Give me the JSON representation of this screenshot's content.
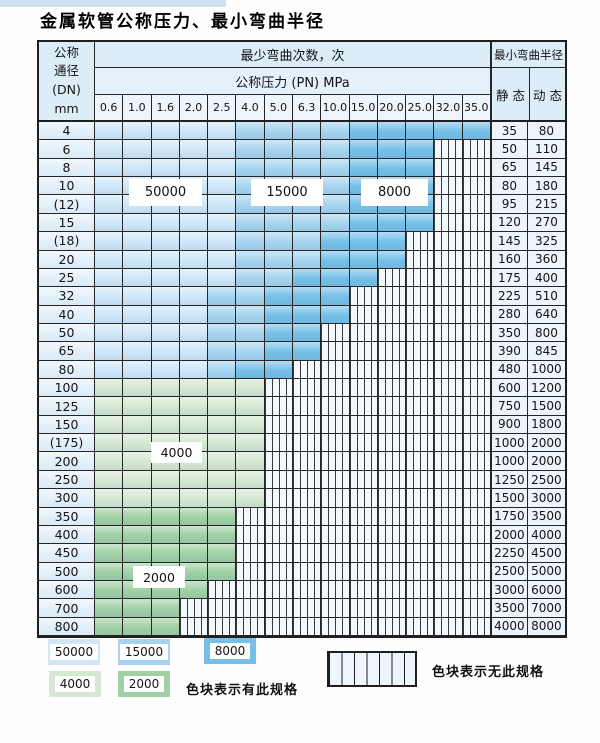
{
  "title": "金属软管公称压力、最小弯曲半径",
  "colors": {
    "b50": "#cfe7f8",
    "b15": "#a6d4ef",
    "b80": "#76c0e8",
    "g40": "#d4e8d2",
    "g20": "#a0d0a4",
    "border": "#262626",
    "header_bg": "#dcedf8"
  },
  "table": {
    "header": {
      "dn_lines": [
        "公称",
        "通径",
        "(DN)",
        "mm"
      ],
      "bend_times": "最少弯曲次数，次",
      "pressure": "公称压力 (PN) MPa",
      "radius": "最小弯曲半径",
      "static": "静 态",
      "dynamic": "动 态",
      "pressure_cols": [
        "0.6",
        "1.0",
        "1.6",
        "2.0",
        "2.5",
        "4.0",
        "5.0",
        "6.3",
        "10.0",
        "15.0",
        "20.0",
        "25.0",
        "32.0",
        "35.0"
      ]
    },
    "cycle_zone_meaning": {
      "b50": "50000",
      "b15": "15000",
      "b80": "8000",
      "g40": "4000",
      "g20": "2000",
      "no": "无此规格"
    },
    "rows": [
      {
        "dn": "4",
        "static": "35",
        "dynamic": "80",
        "bands": [
          [
            "b50",
            5
          ],
          [
            "b15",
            4
          ],
          [
            "b80",
            5
          ]
        ]
      },
      {
        "dn": "6",
        "static": "50",
        "dynamic": "110",
        "bands": [
          [
            "b50",
            5
          ],
          [
            "b15",
            4
          ],
          [
            "b80",
            3
          ],
          [
            "no",
            2
          ]
        ]
      },
      {
        "dn": "8",
        "static": "65",
        "dynamic": "145",
        "bands": [
          [
            "b50",
            5
          ],
          [
            "b15",
            4
          ],
          [
            "b80",
            3
          ],
          [
            "no",
            2
          ]
        ]
      },
      {
        "dn": "10",
        "static": "80",
        "dynamic": "180",
        "bands": [
          [
            "b50",
            5
          ],
          [
            "b15",
            4
          ],
          [
            "b80",
            3
          ],
          [
            "no",
            2
          ]
        ]
      },
      {
        "dn": "(12)",
        "static": "95",
        "dynamic": "215",
        "bands": [
          [
            "b50",
            5
          ],
          [
            "b15",
            4
          ],
          [
            "b80",
            3
          ],
          [
            "no",
            2
          ]
        ]
      },
      {
        "dn": "15",
        "static": "120",
        "dynamic": "270",
        "bands": [
          [
            "b50",
            5
          ],
          [
            "b15",
            4
          ],
          [
            "b80",
            3
          ],
          [
            "no",
            2
          ]
        ]
      },
      {
        "dn": "(18)",
        "static": "145",
        "dynamic": "325",
        "bands": [
          [
            "b50",
            5
          ],
          [
            "b15",
            3
          ],
          [
            "b80",
            3
          ],
          [
            "no",
            3
          ]
        ]
      },
      {
        "dn": "20",
        "static": "160",
        "dynamic": "360",
        "bands": [
          [
            "b50",
            5
          ],
          [
            "b15",
            3
          ],
          [
            "b80",
            3
          ],
          [
            "no",
            3
          ]
        ]
      },
      {
        "dn": "25",
        "static": "175",
        "dynamic": "400",
        "bands": [
          [
            "b50",
            5
          ],
          [
            "b15",
            2
          ],
          [
            "b80",
            3
          ],
          [
            "no",
            4
          ]
        ]
      },
      {
        "dn": "32",
        "static": "225",
        "dynamic": "510",
        "bands": [
          [
            "b50",
            4
          ],
          [
            "b15",
            2
          ],
          [
            "b80",
            3
          ],
          [
            "no",
            5
          ]
        ]
      },
      {
        "dn": "40",
        "static": "280",
        "dynamic": "640",
        "bands": [
          [
            "b50",
            4
          ],
          [
            "b15",
            2
          ],
          [
            "b80",
            3
          ],
          [
            "no",
            5
          ]
        ]
      },
      {
        "dn": "50",
        "static": "350",
        "dynamic": "800",
        "bands": [
          [
            "b50",
            4
          ],
          [
            "b15",
            2
          ],
          [
            "b80",
            2
          ],
          [
            "no",
            6
          ]
        ]
      },
      {
        "dn": "65",
        "static": "390",
        "dynamic": "845",
        "bands": [
          [
            "b50",
            4
          ],
          [
            "b15",
            2
          ],
          [
            "b80",
            2
          ],
          [
            "no",
            6
          ]
        ]
      },
      {
        "dn": "80",
        "static": "480",
        "dynamic": "1000",
        "bands": [
          [
            "b50",
            4
          ],
          [
            "b15",
            1
          ],
          [
            "b80",
            2
          ],
          [
            "no",
            7
          ]
        ]
      },
      {
        "dn": "100",
        "static": "600",
        "dynamic": "1200",
        "bands": [
          [
            "g40",
            6
          ],
          [
            "no",
            8
          ]
        ]
      },
      {
        "dn": "125",
        "static": "750",
        "dynamic": "1500",
        "bands": [
          [
            "g40",
            6
          ],
          [
            "no",
            8
          ]
        ]
      },
      {
        "dn": "150",
        "static": "900",
        "dynamic": "1800",
        "bands": [
          [
            "g40",
            6
          ],
          [
            "no",
            8
          ]
        ]
      },
      {
        "dn": "(175)",
        "static": "1000",
        "dynamic": "2000",
        "bands": [
          [
            "g40",
            6
          ],
          [
            "no",
            8
          ]
        ]
      },
      {
        "dn": "200",
        "static": "1000",
        "dynamic": "2000",
        "bands": [
          [
            "g40",
            6
          ],
          [
            "no",
            8
          ]
        ]
      },
      {
        "dn": "250",
        "static": "1250",
        "dynamic": "2500",
        "bands": [
          [
            "g40",
            6
          ],
          [
            "no",
            8
          ]
        ]
      },
      {
        "dn": "300",
        "static": "1500",
        "dynamic": "3000",
        "bands": [
          [
            "g40",
            6
          ],
          [
            "no",
            8
          ]
        ]
      },
      {
        "dn": "350",
        "static": "1750",
        "dynamic": "3500",
        "bands": [
          [
            "g20",
            5
          ],
          [
            "no",
            9
          ]
        ]
      },
      {
        "dn": "400",
        "static": "2000",
        "dynamic": "4000",
        "bands": [
          [
            "g20",
            5
          ],
          [
            "no",
            9
          ]
        ]
      },
      {
        "dn": "450",
        "static": "2250",
        "dynamic": "4500",
        "bands": [
          [
            "g20",
            5
          ],
          [
            "no",
            9
          ]
        ]
      },
      {
        "dn": "500",
        "static": "2500",
        "dynamic": "5000",
        "bands": [
          [
            "g20",
            5
          ],
          [
            "no",
            9
          ]
        ]
      },
      {
        "dn": "600",
        "static": "3000",
        "dynamic": "6000",
        "bands": [
          [
            "g20",
            4
          ],
          [
            "no",
            10
          ]
        ]
      },
      {
        "dn": "700",
        "static": "3500",
        "dynamic": "7000",
        "bands": [
          [
            "g20",
            3
          ],
          [
            "no",
            11
          ]
        ]
      },
      {
        "dn": "800",
        "static": "4000",
        "dynamic": "8000",
        "bands": [
          [
            "g20",
            3
          ],
          [
            "no",
            11
          ]
        ]
      }
    ]
  },
  "annotations": {
    "a50000": "50000",
    "a15000": "15000",
    "a8000": "8000",
    "a4000": "4000",
    "a2000": "2000"
  },
  "legend": {
    "items": [
      {
        "value": "50000",
        "key": "b50"
      },
      {
        "value": "15000",
        "key": "b15"
      },
      {
        "value": "8000",
        "key": "b80"
      },
      {
        "value": "4000",
        "key": "g40"
      },
      {
        "value": "2000",
        "key": "g20"
      }
    ],
    "has_spec": "色块表示有此规格",
    "no_spec": "色块表示无此规格"
  }
}
